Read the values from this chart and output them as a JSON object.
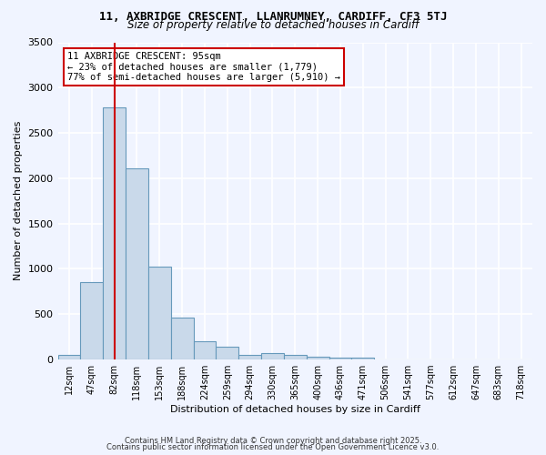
{
  "title1": "11, AXBRIDGE CRESCENT, LLANRUMNEY, CARDIFF, CF3 5TJ",
  "title2": "Size of property relative to detached houses in Cardiff",
  "xlabel": "Distribution of detached houses by size in Cardiff",
  "ylabel": "Number of detached properties",
  "bar_color": "#c9d9ea",
  "bar_edge_color": "#6699bb",
  "background_color": "#f0f4ff",
  "grid_color": "#ffffff",
  "bins": [
    "12sqm",
    "47sqm",
    "82sqm",
    "118sqm",
    "153sqm",
    "188sqm",
    "224sqm",
    "259sqm",
    "294sqm",
    "330sqm",
    "365sqm",
    "400sqm",
    "436sqm",
    "471sqm",
    "506sqm",
    "541sqm",
    "577sqm",
    "612sqm",
    "647sqm",
    "683sqm",
    "718sqm"
  ],
  "values": [
    55,
    850,
    2780,
    2110,
    1020,
    460,
    205,
    140,
    55,
    70,
    55,
    35,
    25,
    20,
    0,
    0,
    0,
    0,
    0,
    0,
    0
  ],
  "ylim": [
    0,
    3500
  ],
  "yticks": [
    0,
    500,
    1000,
    1500,
    2000,
    2500,
    3000,
    3500
  ],
  "property_bin_index": 2,
  "annotation_title": "11 AXBRIDGE CRESCENT: 95sqm",
  "annotation_line1": "← 23% of detached houses are smaller (1,779)",
  "annotation_line2": "77% of semi-detached houses are larger (5,910) →",
  "red_line_color": "#cc0000",
  "annotation_box_color": "#ffffff",
  "annotation_box_edge": "#cc0000",
  "footer1": "Contains HM Land Registry data © Crown copyright and database right 2025.",
  "footer2": "Contains public sector information licensed under the Open Government Licence v3.0."
}
